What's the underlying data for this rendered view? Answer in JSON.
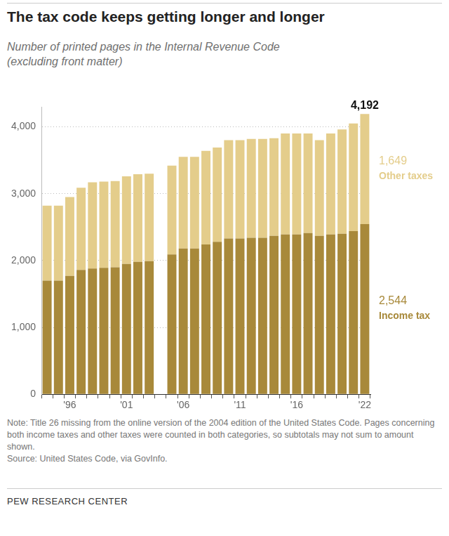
{
  "chart_data": {
    "type": "bar",
    "title": "The tax code keeps getting longer and longer",
    "subtitle": [
      "Number of printed pages in the Internal Revenue Code",
      "(excluding front matter)"
    ],
    "categories": [
      null,
      null,
      "'96",
      null,
      null,
      null,
      null,
      "'01",
      null,
      null,
      null,
      null,
      "'06",
      null,
      null,
      null,
      null,
      "'11",
      null,
      null,
      null,
      null,
      "'16",
      null,
      null,
      null,
      null,
      null,
      "'22"
    ],
    "series": [
      {
        "name": "Income tax",
        "color": "#a8893a",
        "values": [
          1700,
          1700,
          1770,
          1860,
          1880,
          1890,
          1900,
          1950,
          1980,
          1990,
          null,
          2090,
          2180,
          2180,
          2240,
          2280,
          2330,
          2330,
          2340,
          2340,
          2370,
          2390,
          2390,
          2410,
          2370,
          2390,
          2400,
          2440,
          2544
        ],
        "value_labels": [
          null,
          null,
          null,
          null,
          null,
          null,
          null,
          null,
          null,
          null,
          null,
          null,
          null,
          null,
          null,
          null,
          null,
          null,
          null,
          null,
          null,
          null,
          null,
          null,
          null,
          null,
          null,
          null,
          "2,544"
        ]
      },
      {
        "name": "Other taxes",
        "color": "#e4cd8b",
        "values": [
          1120,
          1120,
          1180,
          1230,
          1290,
          1290,
          1290,
          1310,
          1310,
          1310,
          null,
          1330,
          1370,
          1370,
          1400,
          1410,
          1470,
          1470,
          1480,
          1480,
          1460,
          1510,
          1510,
          1490,
          1430,
          1510,
          1560,
          1610,
          1649
        ],
        "value_labels": [
          null,
          null,
          null,
          null,
          null,
          null,
          null,
          null,
          null,
          null,
          null,
          null,
          null,
          null,
          null,
          null,
          null,
          null,
          null,
          null,
          null,
          null,
          null,
          null,
          null,
          null,
          null,
          null,
          "1,649"
        ]
      }
    ],
    "total_label": {
      "text": "4,192",
      "value": 4192
    },
    "stacked": true,
    "ylim": [
      0,
      4300
    ],
    "yticks": [
      0,
      {
        "value": 1000,
        "label": "1,000"
      },
      {
        "value": 2000,
        "label": "2,000"
      },
      {
        "value": 3000,
        "label": "3,000"
      },
      {
        "value": 4000,
        "label": "4,000"
      }
    ],
    "grid": true,
    "note": "Note: Title 26 missing from the online version of the 2004 edition of the United States Code. Pages concerning both income taxes and other taxes were counted in both categories, so subtotals may not sum to amount shown.",
    "source": "Source: United States Code, via GovInfo.",
    "credit": "PEW RESEARCH CENTER"
  }
}
